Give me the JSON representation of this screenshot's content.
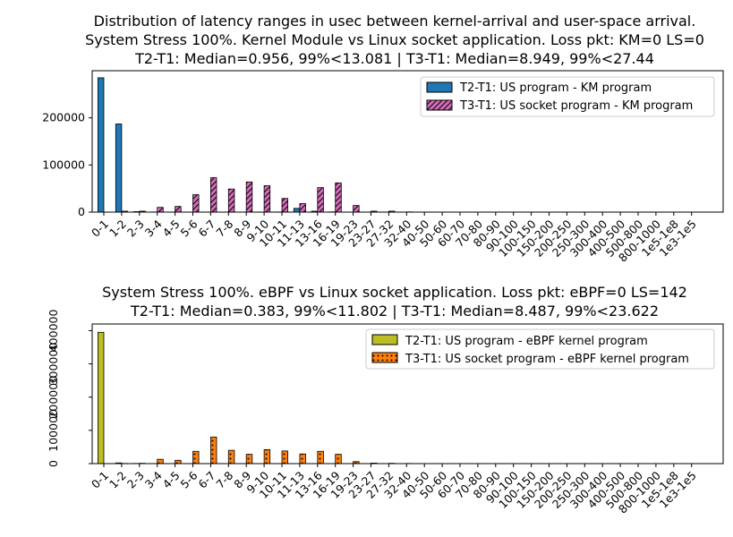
{
  "chart_data": [
    {
      "type": "bar",
      "title_lines": [
        "Distribution of latency ranges in usec between kernel-arrival and user-space arrival.",
        "System Stress 100%. Kernel Module vs Linux socket application. Loss pkt: KM=0 LS=0",
        "T2-T1: Median=0.956, 99%<13.081 | T3-T1: Median=8.949, 99%<27.44"
      ],
      "categories": [
        "0-1",
        "1-2",
        "2-3",
        "3-4",
        "4-5",
        "5-6",
        "6-7",
        "7-8",
        "8-9",
        "9-10",
        "10-11",
        "11-13",
        "13-16",
        "16-19",
        "19-23",
        "23-27",
        "27-32",
        "32-40",
        "40-50",
        "50-60",
        "60-70",
        "70-80",
        "80-90",
        "90-100",
        "100-150",
        "150-200",
        "200-250",
        "250-300",
        "300-400",
        "400-500",
        "500-800",
        "800-1000",
        "1e5-1e8",
        "1e3-1e5"
      ],
      "yticks": [
        0,
        100000,
        200000
      ],
      "ytick_labels": [
        "0",
        "100000",
        "200000"
      ],
      "ylim": [
        0,
        300000
      ],
      "series": [
        {
          "name": "T2-T1: US program - KM program",
          "color": "#1f77b4",
          "hatch": "none",
          "values": [
            285000,
            187000,
            1000,
            300,
            200,
            200,
            200,
            200,
            200,
            200,
            300,
            8000,
            2000,
            500,
            200,
            200,
            200,
            100,
            0,
            0,
            0,
            0,
            0,
            0,
            0,
            0,
            0,
            0,
            0,
            0,
            0,
            0,
            0,
            0
          ]
        },
        {
          "name": "T3-T1: US socket program - KM program",
          "color": "#d46ab8",
          "hatch": "diagonal",
          "values": [
            0,
            2000,
            2000,
            10000,
            12000,
            37000,
            73000,
            49000,
            64000,
            56000,
            29000,
            18000,
            52000,
            62000,
            14000,
            2000,
            2000,
            500,
            200,
            100,
            0,
            0,
            0,
            0,
            0,
            0,
            0,
            0,
            0,
            0,
            0,
            0,
            0,
            0
          ]
        }
      ],
      "legend_position": "upper-right"
    },
    {
      "type": "bar",
      "title_lines": [
        "System Stress 100%. eBPF vs Linux socket application. Loss pkt: eBPF=0 LS=142",
        "T2-T1: Median=0.383, 99%<11.802 | T3-T1: Median=8.487, 99%<23.622"
      ],
      "categories": [
        "0-1",
        "1-2",
        "2-3",
        "3-4",
        "4-5",
        "5-6",
        "6-7",
        "7-8",
        "8-9",
        "9-10",
        "10-11",
        "11-13",
        "13-16",
        "16-19",
        "19-23",
        "23-27",
        "27-32",
        "32-40",
        "40-50",
        "50-60",
        "60-70",
        "70-80",
        "80-90",
        "90-100",
        "100-150",
        "150-200",
        "200-250",
        "250-300",
        "300-400",
        "400-500",
        "500-800",
        "800-1000",
        "1e5-1e8",
        "1e3-1e5"
      ],
      "yticks": [
        0,
        100000,
        200000,
        300000,
        400000
      ],
      "ytick_labels": [
        "0",
        "100000",
        "200000",
        "300000",
        "400000"
      ],
      "ylim": [
        0,
        420000
      ],
      "series": [
        {
          "name": "T2-T1: US program - eBPF kernel program",
          "color": "#bcbd22",
          "hatch": "none",
          "values": [
            395000,
            2000,
            500,
            300,
            200,
            200,
            200,
            200,
            200,
            200,
            200,
            200,
            200,
            200,
            200,
            100,
            100,
            0,
            0,
            0,
            0,
            0,
            0,
            0,
            0,
            0,
            0,
            0,
            0,
            0,
            0,
            0,
            0,
            0
          ]
        },
        {
          "name": "T3-T1: US socket program - eBPF kernel program",
          "color": "#ff7f0e",
          "hatch": "dots",
          "values": [
            0,
            500,
            1000,
            13000,
            10000,
            37000,
            80000,
            40000,
            28000,
            42000,
            38000,
            29000,
            37000,
            28000,
            6000,
            1500,
            1000,
            500,
            200,
            100,
            0,
            0,
            0,
            0,
            0,
            0,
            0,
            0,
            0,
            0,
            0,
            0,
            0,
            0
          ]
        }
      ],
      "legend_position": "upper-right"
    }
  ]
}
